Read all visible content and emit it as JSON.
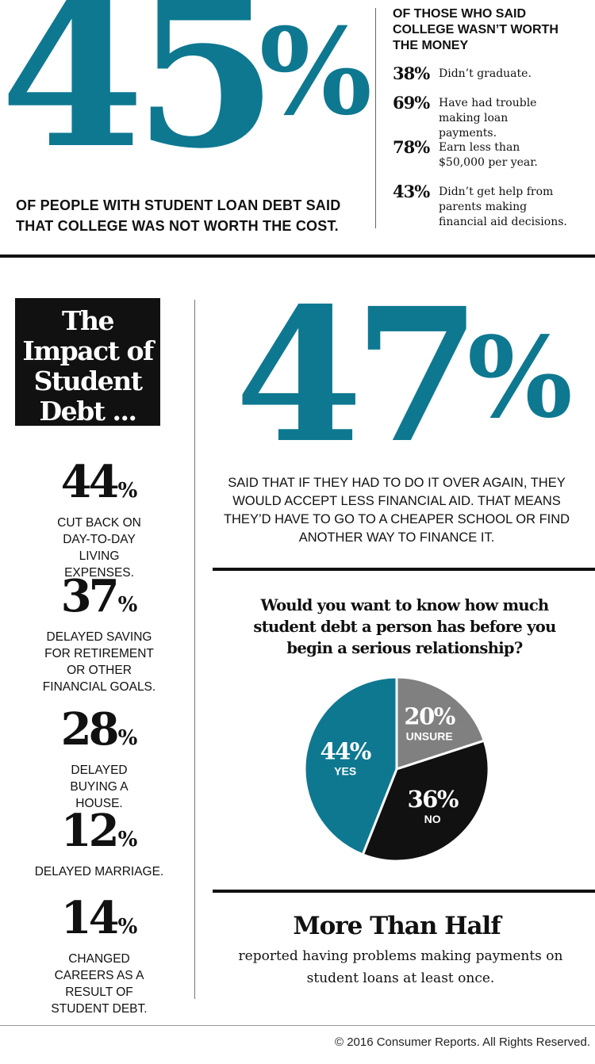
{
  "top": {
    "big_number": "45",
    "big_percent": "%",
    "caption": "OF PEOPLE WITH STUDENT LOAN DEBT SAID THAT COLLEGE WAS NOT WORTH THE COST.",
    "side_heading": "OF THOSE WHO SAID COLLEGE WASN’T WORTH THE MONEY",
    "stats": [
      {
        "value": "38%",
        "text": "Didn’t graduate."
      },
      {
        "value": "69%",
        "text": "Have had trouble making loan payments."
      },
      {
        "value": "78%",
        "text": "Earn less than $50,000 per year."
      },
      {
        "value": "43%",
        "text": "Didn’t get help from parents making financial aid decisions."
      }
    ]
  },
  "impact": {
    "title_lines": [
      "The",
      "Impact of",
      "Student",
      "Debt ..."
    ],
    "stats": [
      {
        "number": "44",
        "percent": "%",
        "text": "CUT BACK ON DAY-TO-DAY LIVING EXPENSES."
      },
      {
        "number": "37",
        "percent": "%",
        "text": "DELAYED SAVING FOR RETIREMENT OR OTHER FINANCIAL GOALS."
      },
      {
        "number": "28",
        "percent": "%",
        "text": "DELAYED BUYING A HOUSE."
      },
      {
        "number": "12",
        "percent": "%",
        "text": "DELAYED MARRIAGE."
      },
      {
        "number": "14",
        "percent": "%",
        "text": "CHANGED CAREERS AS A RESULT OF STUDENT DEBT."
      }
    ]
  },
  "financial_aid": {
    "big_number": "47",
    "big_percent": "%",
    "caption": "SAID THAT IF THEY HAD TO DO IT OVER AGAIN, THEY WOULD ACCEPT LESS FINANCIAL AID. THAT MEANS THEY’D HAVE TO GO TO A CHEAPER SCHOOL OR FIND ANOTHER WAY TO FINANCE IT."
  },
  "chart_data": {
    "type": "pie",
    "title": "Would you want to know how much student debt a person has before you begin a serious relationship?",
    "slices": [
      {
        "label": "UNSURE",
        "value": 20,
        "value_label": "20%",
        "color": "#808080"
      },
      {
        "label": "NO",
        "value": 36,
        "value_label": "36%",
        "color": "#111111"
      },
      {
        "label": "YES",
        "value": 44,
        "value_label": "44%",
        "color": "#0e7891"
      }
    ]
  },
  "more_than_half": {
    "title": "More Than Half",
    "text": "reported having problems making payments on student loans at least once."
  },
  "footer": {
    "copyright": "© 2016 Consumer Reports. All Rights Reserved."
  },
  "colors": {
    "accent": "#0e7891",
    "dark": "#111111",
    "gray": "#808080"
  }
}
